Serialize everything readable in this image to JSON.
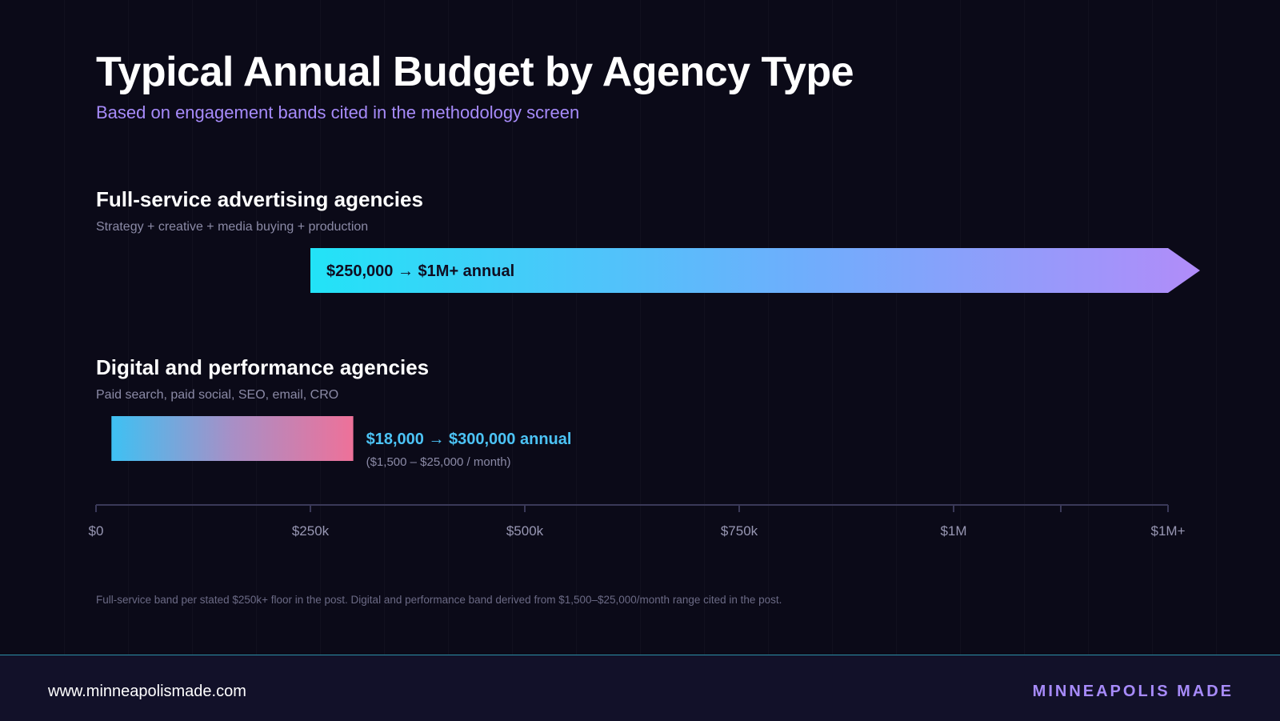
{
  "chart_data": {
    "type": "range-bar",
    "title": "Typical Annual Budget by Agency Type",
    "subtitle": "Based on engagement bands cited in the methodology screen",
    "x_axis": {
      "min": 0,
      "max": 1250000,
      "ticks": [
        {
          "value": 0,
          "label": "$0"
        },
        {
          "value": 250000,
          "label": "$250k"
        },
        {
          "value": 500000,
          "label": "$500k"
        },
        {
          "value": 750000,
          "label": "$750k"
        },
        {
          "value": 1000000,
          "label": "$1M"
        },
        {
          "value": 1250000,
          "label": "$1M+"
        }
      ],
      "minor_ticks": [
        1125000
      ]
    },
    "bands": [
      {
        "name": "Full-service advertising agencies",
        "description": "Strategy + creative + media buying + production",
        "min": 250000,
        "max": 1250000,
        "open_ended": true,
        "label": "$250,000 → $1M+ annual",
        "sublabel": "",
        "gradient": [
          "#22e3f7",
          "#6eaefc",
          "#b18cf9"
        ]
      },
      {
        "name": "Digital and performance agencies",
        "description": "Paid search, paid social, SEO, email, CRO",
        "min": 18000,
        "max": 300000,
        "open_ended": false,
        "label": "$18,000 → $300,000 annual",
        "sublabel": "($1,500 – $25,000 / month)",
        "gradient": [
          "#3ec1f3",
          "#a88fc6",
          "#ee7199"
        ]
      }
    ],
    "grid": true
  },
  "footnote": "Full-service band per stated $250k+ floor in the post. Digital and performance band derived from $1,500–$25,000/month range cited in the post.",
  "footer": {
    "url": "www.minneapolismade.com",
    "brand": "MINNEAPOLIS MADE"
  },
  "colors": {
    "background": "#0b0a18",
    "footer_background": "#121129",
    "accent": "#a78bfa",
    "label_cyan": "#4cc3f5",
    "axis": "#3a3958",
    "divider": "#2b8fa8"
  }
}
